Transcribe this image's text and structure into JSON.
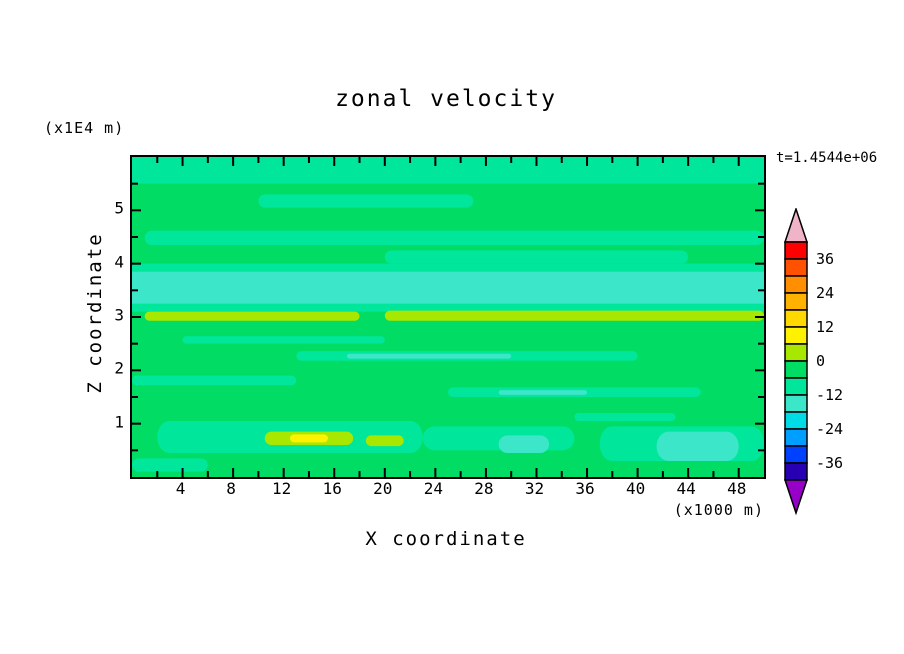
{
  "title": "zonal velocity",
  "time_label": "t=1.4544e+06",
  "axes": {
    "x_label": "X coordinate",
    "x_unit_label": "(x1000 m)",
    "y_label": "Z coordinate",
    "y_unit_label": "(x1E4 m)",
    "x_ticks": [
      {
        "value": 4,
        "label": "4"
      },
      {
        "value": 8,
        "label": "8"
      },
      {
        "value": 12,
        "label": "12"
      },
      {
        "value": 16,
        "label": "16"
      },
      {
        "value": 20,
        "label": "20"
      },
      {
        "value": 24,
        "label": "24"
      },
      {
        "value": 28,
        "label": "28"
      },
      {
        "value": 32,
        "label": "32"
      },
      {
        "value": 36,
        "label": "36"
      },
      {
        "value": 40,
        "label": "40"
      },
      {
        "value": 44,
        "label": "44"
      },
      {
        "value": 48,
        "label": "48"
      }
    ],
    "y_ticks": [
      {
        "value": 1,
        "label": "1"
      },
      {
        "value": 2,
        "label": "2"
      },
      {
        "value": 3,
        "label": "3"
      },
      {
        "value": 4,
        "label": "4"
      },
      {
        "value": 5,
        "label": "5"
      }
    ]
  },
  "colorbar": {
    "labels": [
      "36",
      "24",
      "12",
      "0",
      "-12",
      "-24",
      "-36"
    ],
    "segment_colors_top_to_bottom": [
      "#FF0000",
      "#FF5200",
      "#FF8E00",
      "#FFB300",
      "#FFD800",
      "#FFF200",
      "#A8E800",
      "#00DC64",
      "#00E69B",
      "#3CE6C8",
      "#00DCE6",
      "#009EFF",
      "#0040FF",
      "#2800B4"
    ],
    "top_arrow_color": "#F0B4C8",
    "bottom_arrow_color": "#9600C8",
    "outline_color": "#000000"
  },
  "chart_data": {
    "type": "heatmap",
    "title": "zonal velocity",
    "xlabel": "X coordinate (x1000 m)",
    "ylabel": "Z coordinate (x1E4 m)",
    "time_annotation": "t=1.4544e+06",
    "x_range": [
      0,
      50
    ],
    "z_range": [
      0,
      6
    ],
    "contour_interval": 6,
    "colorbar_tick_values": [
      36,
      24,
      12,
      0,
      -12,
      -24,
      -36
    ],
    "legend_position": "right",
    "grid": false,
    "background_level": "-6..0",
    "level_colors": {
      "6..12": "#FFF200",
      "0..6": "#A8E800",
      "-6..0": "#00DC64",
      "-12..-6": "#00E69B",
      "-18..-12": "#3CE6C8"
    },
    "bands": [
      {
        "x": [
          0,
          50
        ],
        "z": [
          5.5,
          6.0
        ],
        "level": "-12..-6"
      },
      {
        "x": [
          10,
          27
        ],
        "z": [
          5.05,
          5.3
        ],
        "level": "-12..-6"
      },
      {
        "x": [
          1,
          50
        ],
        "z": [
          4.35,
          4.62
        ],
        "level": "-12..-6"
      },
      {
        "x": [
          20,
          44
        ],
        "z": [
          4.0,
          4.25
        ],
        "level": "-12..-6"
      },
      {
        "x": [
          0,
          50
        ],
        "z": [
          3.1,
          4.0
        ],
        "level": "-12..-6"
      },
      {
        "x": [
          0,
          50
        ],
        "z": [
          3.25,
          3.85
        ],
        "level": "-18..-12"
      },
      {
        "x": [
          1,
          18
        ],
        "z": [
          2.93,
          3.1
        ],
        "level": "0..6"
      },
      {
        "x": [
          20,
          50
        ],
        "z": [
          2.93,
          3.12
        ],
        "level": "0..6"
      },
      {
        "x": [
          4,
          20
        ],
        "z": [
          2.5,
          2.64
        ],
        "level": "-12..-6"
      },
      {
        "x": [
          13,
          40
        ],
        "z": [
          2.18,
          2.36
        ],
        "level": "-12..-6"
      },
      {
        "x": [
          17,
          30
        ],
        "z": [
          2.22,
          2.31
        ],
        "level": "-18..-12"
      },
      {
        "x": [
          0,
          13
        ],
        "z": [
          1.72,
          1.9
        ],
        "level": "-12..-6"
      },
      {
        "x": [
          25,
          45
        ],
        "z": [
          1.5,
          1.68
        ],
        "level": "-12..-6"
      },
      {
        "x": [
          29,
          36
        ],
        "z": [
          1.54,
          1.63
        ],
        "level": "-18..-12"
      },
      {
        "x": [
          35,
          43
        ],
        "z": [
          1.05,
          1.2
        ],
        "level": "-12..-6"
      },
      {
        "x": [
          2,
          23
        ],
        "z": [
          0.45,
          1.05
        ],
        "level": "-12..-6"
      },
      {
        "x": [
          23,
          35
        ],
        "z": [
          0.5,
          0.95
        ],
        "level": "-12..-6"
      },
      {
        "x": [
          37,
          50
        ],
        "z": [
          0.3,
          0.95
        ],
        "level": "-12..-6"
      },
      {
        "x": [
          10.5,
          17.5
        ],
        "z": [
          0.6,
          0.85
        ],
        "level": "0..6"
      },
      {
        "x": [
          18.5,
          21.5
        ],
        "z": [
          0.58,
          0.78
        ],
        "level": "0..6"
      },
      {
        "x": [
          12.5,
          15.5
        ],
        "z": [
          0.65,
          0.8
        ],
        "level": "6..12"
      },
      {
        "x": [
          29,
          33
        ],
        "z": [
          0.45,
          0.78
        ],
        "level": "-18..-12"
      },
      {
        "x": [
          41.5,
          48
        ],
        "z": [
          0.3,
          0.85
        ],
        "level": "-18..-12"
      },
      {
        "x": [
          0,
          6
        ],
        "z": [
          0.1,
          0.35
        ],
        "level": "-12..-6"
      }
    ]
  }
}
